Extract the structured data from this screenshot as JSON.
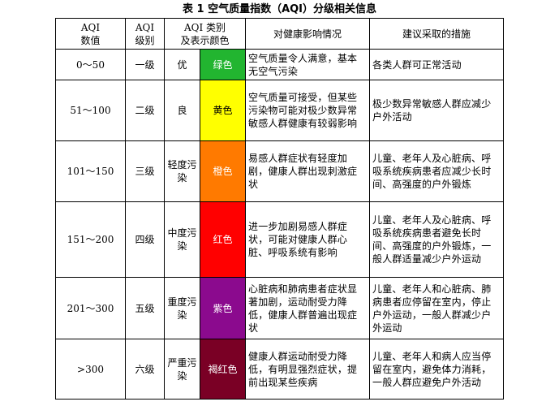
{
  "caption": "表 1   空气质量指数（AQI）分级相关信息",
  "headers": {
    "range_line1": "AQI",
    "range_line2": "数值",
    "level_line1": "AQI",
    "level_line2": "级别",
    "cat_line1": "AQI 类别",
    "cat_line2": "及表示颜色",
    "effect": "对健康影响情况",
    "advice": "建议采取的措施"
  },
  "rows": [
    {
      "range": "0～50",
      "level": "一级",
      "category": "优",
      "color_name": "绿色",
      "color_hex": "#22b530",
      "effect": "空气质量令人满意，基本无空气污染",
      "advice": "各类人群可正常活动"
    },
    {
      "range": "51～100",
      "level": "二级",
      "category": "良",
      "color_name": "黄色",
      "color_hex": "#ffff00",
      "effect": "空气质量可接受，但某些污染物可能对极少数异常敏感人群健康有较弱影响",
      "advice": "极少数异常敏感人群应减少户外活动"
    },
    {
      "range": "101～150",
      "level": "三级",
      "category": "轻度污染",
      "color_name": "橙色",
      "color_hex": "#ff7a00",
      "effect": "易感人群症状有轻度加剧，健康人群出现刺激症状",
      "advice": "儿童、老年人及心脏病、呼吸系统疾病患者应减少长时间、高强度的户外锻炼"
    },
    {
      "range": "151～200",
      "level": "四级",
      "category": "中度污染",
      "color_name": "红色",
      "color_hex": "#ff0000",
      "effect": "进一步加剧易感人群症状，可能对健康人群心脏、呼吸系统有影响",
      "advice": "儿童、老年人及心脏病、呼吸系统疾病患者避免长时间、高强度的户外锻炼，一般人群适量减少户外运动"
    },
    {
      "range": "201～300",
      "level": "五级",
      "category": "重度污染",
      "color_name": "紫色",
      "color_hex": "#8b0a8e",
      "effect": "心脏病和肺病患者症状显著加剧，运动耐受力降低，健康人群普遍出现症状",
      "advice": "儿童、老年人和心脏病、肺病患者应停留在室内，停止户外运动，一般人群减少户外运动"
    },
    {
      "range": ">300",
      "level": "六级",
      "category": "严重污染",
      "color_name": "褐红色",
      "color_hex": "#7a0025",
      "effect": "健康人群运动耐受力降低，有明显强烈症状，提前出现某些疾病",
      "advice": "儿童、老年人和病人应当停留在室内，避免体力消耗，一般人群应避免户外活动"
    }
  ]
}
